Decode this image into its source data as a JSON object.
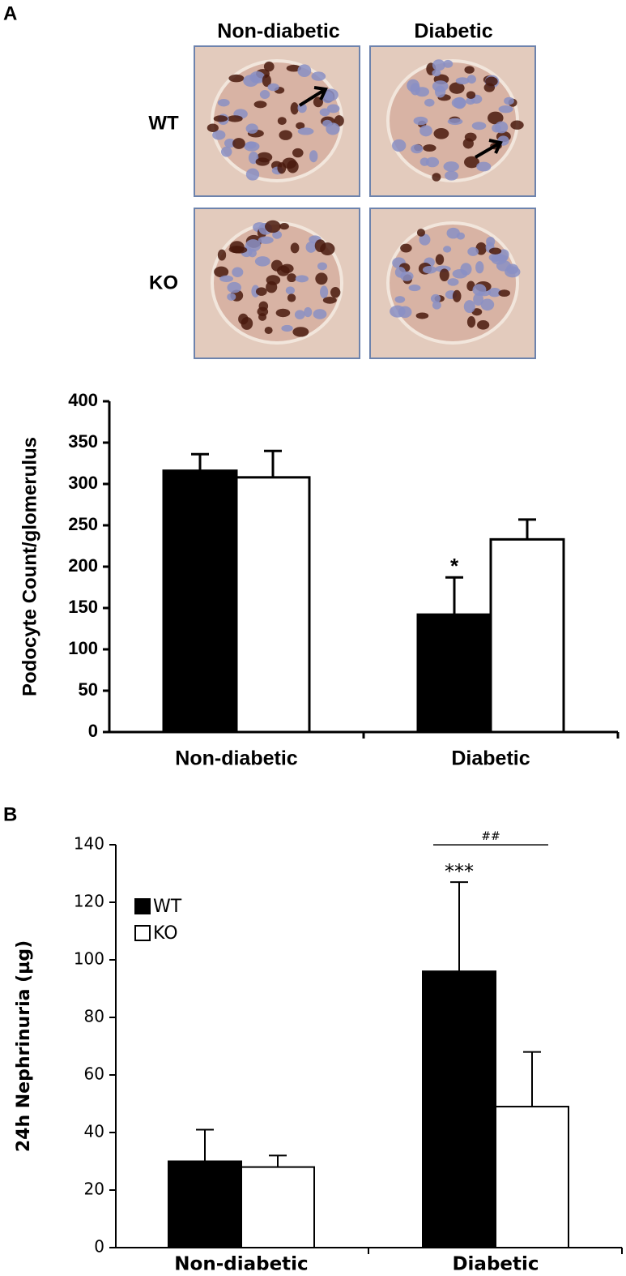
{
  "figure": {
    "panel_labels": [
      "A",
      "B"
    ],
    "micrographs": {
      "columns": [
        "Non-diabetic",
        "Diabetic"
      ],
      "rows": [
        "WT",
        "KO"
      ]
    }
  },
  "chart_data": [
    {
      "type": "bar",
      "y_label": "Podocyte Count/glomerulus",
      "categories": [
        "Non-diabetic",
        "Diabetic"
      ],
      "series": [
        {
          "color": "#000000",
          "values": [
            316,
            142
          ],
          "errors": [
            20,
            45
          ]
        },
        {
          "color": "#ffffff",
          "values": [
            308,
            233
          ],
          "errors": [
            32,
            24
          ]
        }
      ],
      "ylim": [
        0,
        400
      ],
      "yticks": [
        0,
        50,
        100,
        150,
        200,
        250,
        300,
        350,
        400
      ],
      "annotations": [
        "*"
      ],
      "grid": false
    },
    {
      "type": "bar",
      "y_label": "24h Nephrinuria (µg)",
      "categories": [
        "Non-diabetic",
        "Diabetic"
      ],
      "series": [
        {
          "name": "WT",
          "color": "#000000",
          "values": [
            30,
            96
          ],
          "errors": [
            11,
            31
          ]
        },
        {
          "name": "KO",
          "color": "#ffffff",
          "values": [
            28,
            49
          ],
          "errors": [
            4,
            19
          ]
        }
      ],
      "ylim": [
        0,
        140
      ],
      "yticks": [
        0,
        20,
        40,
        60,
        80,
        100,
        120,
        140
      ],
      "annotations": [
        "***",
        "##"
      ],
      "legend": "upper left",
      "grid": false
    }
  ]
}
